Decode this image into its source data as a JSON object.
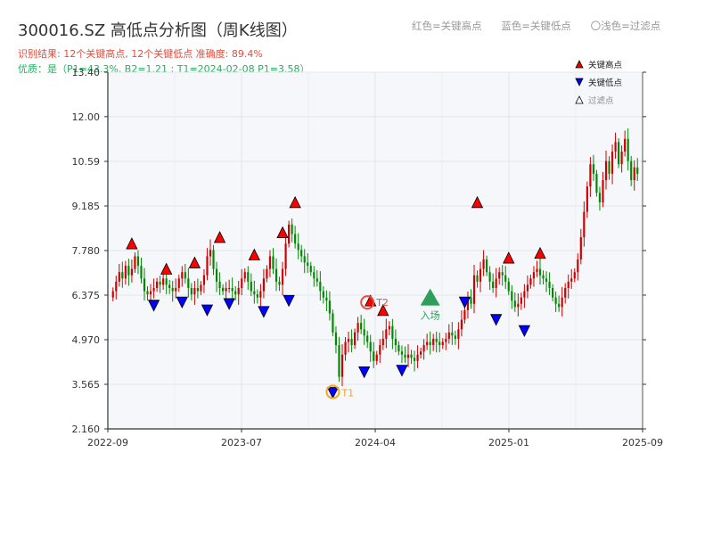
{
  "header": {
    "title": "300016.SZ 高低点分析图（周K线图）",
    "result": "识别结果: 12个关键高点, 12个关键低点   准确度: 89.4%",
    "quality": "优质：是（P1=43.3%, B2=1.21 ; T1=2024-02-08 P1=3.58）",
    "legend_top": [
      "红色=关键高点",
      "蓝色=关键低点",
      "〇浅色=过滤点"
    ]
  },
  "chart_data": {
    "type": "candlestick",
    "y_ticks": [
      "2.160",
      "3.565",
      "4.970",
      "6.375",
      "7.780",
      "9.185",
      "10.59",
      "12.00",
      "13.40"
    ],
    "x_ticks": [
      "2022-09",
      "2023-07",
      "2024-04",
      "2025-01",
      "2025-09"
    ],
    "ylim": [
      2.16,
      13.4
    ],
    "grid": true,
    "legend": [
      {
        "label": "关键高点",
        "color": "#e60000"
      },
      {
        "label": "关键低点",
        "color": "#0000e6"
      },
      {
        "label": "过滤点",
        "color": "#ffffff"
      }
    ],
    "colors": {
      "up": "#d00000",
      "down": "#008a00",
      "high_marker": "#ff0000",
      "low_marker": "#0000ff",
      "t_marker": "#f5a623",
      "entry": "#2e9e5b"
    },
    "close_series": [
      6.5,
      6.8,
      7.1,
      6.9,
      7.3,
      7.0,
      7.2,
      7.6,
      7.3,
      6.9,
      6.5,
      6.4,
      6.5,
      6.6,
      6.8,
      6.7,
      6.9,
      6.7,
      6.6,
      6.5,
      6.6,
      6.9,
      7.1,
      6.9,
      6.6,
      6.4,
      6.6,
      6.5,
      6.7,
      7.0,
      7.6,
      7.8,
      7.2,
      6.8,
      6.6,
      6.5,
      6.6,
      6.6,
      6.5,
      6.4,
      6.6,
      6.9,
      7.1,
      6.8,
      6.5,
      6.4,
      6.3,
      6.5,
      6.9,
      7.2,
      7.6,
      7.2,
      6.8,
      6.7,
      7.2,
      8.0,
      8.6,
      8.3,
      8.0,
      7.8,
      7.6,
      7.4,
      7.3,
      7.1,
      6.9,
      6.8,
      6.5,
      6.3,
      6.2,
      5.8,
      5.2,
      4.8,
      3.8,
      4.5,
      4.9,
      5.0,
      4.8,
      5.2,
      5.5,
      5.3,
      5.1,
      4.9,
      4.6,
      4.3,
      4.5,
      4.8,
      5.0,
      5.3,
      5.4,
      5.0,
      4.8,
      4.6,
      4.5,
      4.4,
      4.5,
      4.4,
      4.3,
      4.5,
      4.6,
      4.8,
      4.9,
      4.8,
      5.0,
      4.9,
      4.8,
      4.9,
      5.0,
      5.2,
      5.1,
      5.0,
      5.3,
      5.6,
      5.9,
      6.3,
      6.1,
      7.0,
      6.8,
      7.2,
      7.5,
      7.1,
      6.8,
      6.6,
      6.9,
      7.1,
      7.0,
      6.8,
      6.5,
      6.2,
      6.0,
      6.1,
      6.3,
      6.5,
      6.7,
      6.9,
      7.1,
      7.2,
      7.0,
      6.9,
      6.8,
      6.6,
      6.3,
      6.1,
      6.0,
      6.3,
      6.6,
      6.8,
      6.9,
      7.1,
      7.5,
      8.2,
      9.0,
      9.8,
      10.5,
      10.2,
      9.6,
      9.3,
      10.0,
      10.6,
      10.2,
      10.9,
      11.2,
      10.5,
      10.9,
      11.3,
      10.6,
      10.0,
      10.4,
      10.2
    ],
    "key_highs": [
      {
        "i": 6,
        "y": 7.75
      },
      {
        "i": 17,
        "y": 6.95
      },
      {
        "i": 26,
        "y": 7.15
      },
      {
        "i": 34,
        "y": 7.95
      },
      {
        "i": 45,
        "y": 7.4
      },
      {
        "i": 54,
        "y": 8.1
      },
      {
        "i": 58,
        "y": 9.05
      },
      {
        "i": 82,
        "y": 5.95
      },
      {
        "i": 86,
        "y": 5.65
      },
      {
        "i": 116,
        "y": 9.05
      },
      {
        "i": 126,
        "y": 7.3
      },
      {
        "i": 136,
        "y": 7.45
      }
    ],
    "key_lows": [
      {
        "i": 13,
        "y": 6.3
      },
      {
        "i": 22,
        "y": 6.4
      },
      {
        "i": 30,
        "y": 6.15
      },
      {
        "i": 37,
        "y": 6.35
      },
      {
        "i": 48,
        "y": 6.1
      },
      {
        "i": 56,
        "y": 6.45
      },
      {
        "i": 70,
        "y": 3.55
      },
      {
        "i": 80,
        "y": 4.2
      },
      {
        "i": 92,
        "y": 4.25
      },
      {
        "i": 112,
        "y": 6.4
      },
      {
        "i": 122,
        "y": 5.85
      },
      {
        "i": 131,
        "y": 5.5
      }
    ],
    "annotations": [
      {
        "text": "T1",
        "i": 70,
        "y": 3.55
      },
      {
        "text": "T2",
        "i": 81,
        "y": 5.95
      },
      {
        "text": "入场",
        "i": 101,
        "y": 6.3
      }
    ]
  }
}
